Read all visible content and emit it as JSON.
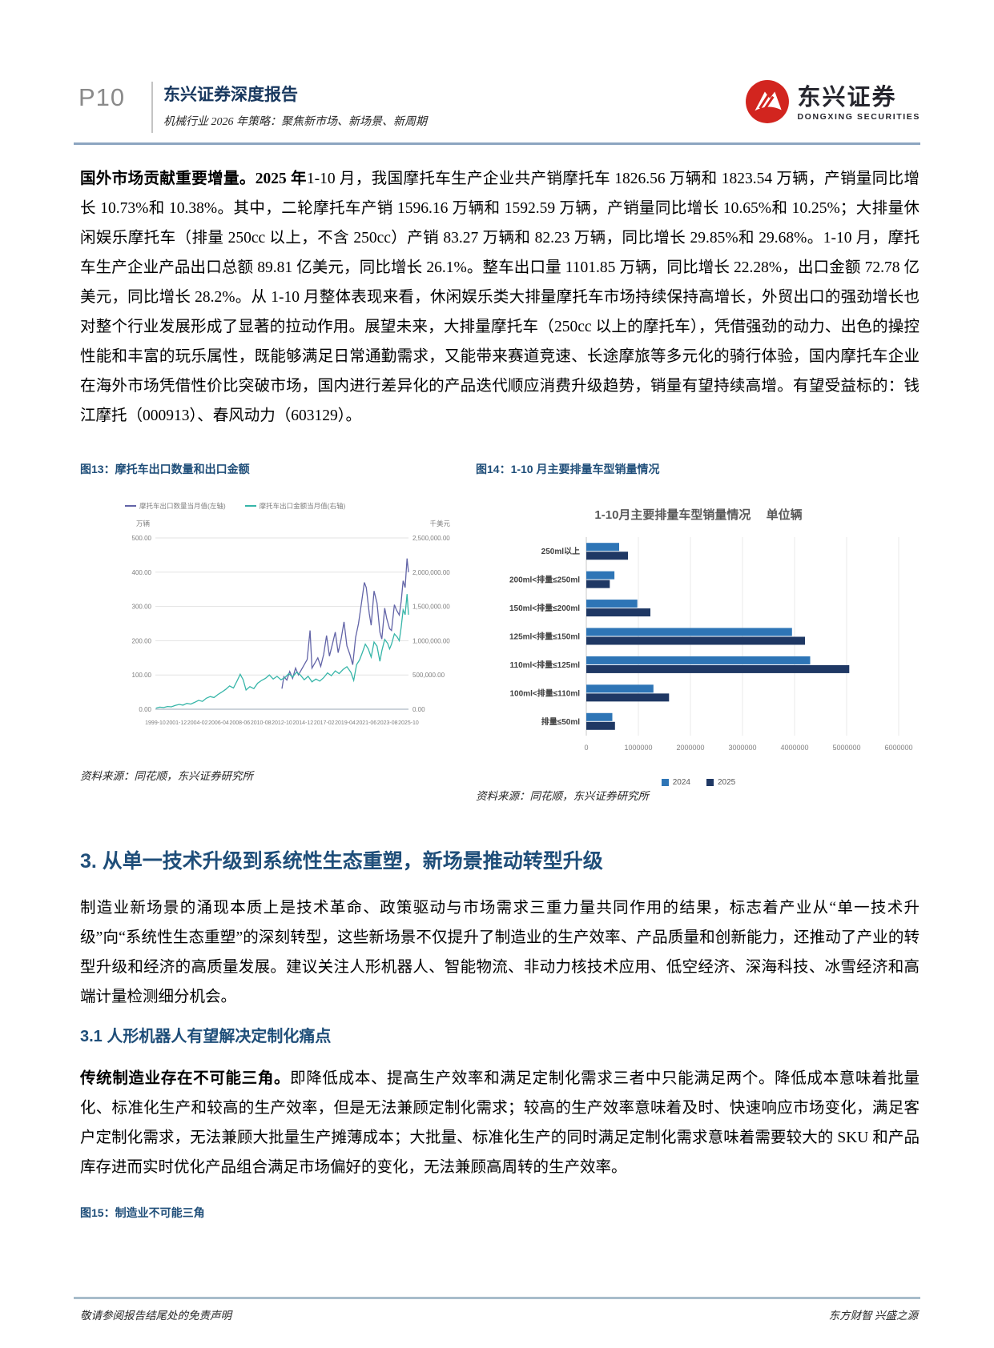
{
  "header": {
    "page_number": "P10",
    "report_type": "东兴证券深度报告",
    "report_subtitle": "机械行业 2026 年策略：聚焦新市场、新场景、新周期",
    "brand_cn": "东兴证券",
    "brand_en": "DONGXING SECURITIES"
  },
  "paragraph1": {
    "lead_bold": "国外市场贡献重要增量。",
    "lead_bold2": "2025 年",
    "text": "1-10 月，我国摩托车生产企业共产销摩托车 1826.56 万辆和 1823.54 万辆，产销量同比增长 10.73%和 10.38%。其中，二轮摩托车产销 1596.16 万辆和 1592.59 万辆，产销量同比增长 10.65%和 10.25%；大排量休闲娱乐摩托车（排量 250cc 以上，不含 250cc）产销 83.27 万辆和 82.23 万辆，同比增长 29.85%和 29.68%。1-10 月，摩托车生产企业产品出口总额 89.81 亿美元，同比增长 26.1%。整车出口量 1101.85 万辆，同比增长 22.28%，出口金额 72.78 亿美元，同比增长 28.2%。从 1-10 月整体表现来看，休闲娱乐类大排量摩托车市场持续保持高增长，外贸出口的强劲增长也对整个行业发展形成了显著的拉动作用。展望未来，大排量摩托车（250cc 以上的摩托车），凭借强劲的动力、出色的操控性能和丰富的玩乐属性，既能够满足日常通勤需求，又能带来赛道竞速、长途摩旅等多元化的骑行体验，国内摩托车企业在海外市场凭借性价比突破市场，国内进行差异化的产品迭代顺应消费升级趋势，销量有望持续高增。有望受益标的：钱江摩托（000913）、春风动力（603129）。"
  },
  "figures": {
    "fig13_caption": "图13：摩托车出口数量和出口金额",
    "fig14_caption": "图14：1-10 月主要排量车型销量情况",
    "source_left": "资料来源：同花顺，东兴证券研究所",
    "source_right": "资料来源：同花顺，东兴证券研究所",
    "fig15_caption": "图15：制造业不可能三角"
  },
  "section3": {
    "heading": "3. 从单一技术升级到系统性生态重塑，新场景推动转型升级",
    "paragraph": "制造业新场景的涌现本质上是技术革命、政策驱动与市场需求三重力量共同作用的结果，标志着产业从“单一技术升级”向“系统性生态重塑”的深刻转型，这些新场景不仅提升了制造业的生产效率、产品质量和创新能力，还推动了产业的转型升级和经济的高质量发展。建议关注人形机器人、智能物流、非动力核技术应用、低空经济、深海科技、冰雪经济和高端计量检测细分机会。",
    "sub_heading": "3.1 人形机器人有望解决定制化痛点",
    "para2_bold": "传统制造业存在不可能三角。",
    "para2_text": "即降低成本、提高生产效率和满足定制化需求三者中只能满足两个。降低成本意味着批量化、标准化生产和较高的生产效率，但是无法兼顾定制化需求；较高的生产效率意味着及时、快速响应市场变化，满足客户定制化需求，无法兼顾大批量生产摊薄成本；大批量、标准化生产的同时满足定制化需求意味着需要较大的 SKU 和产品库存进而实时优化产品组合满足市场偏好的变化，无法兼顾高周转的生产效率。"
  },
  "footer": {
    "left": "敬请参阅报告结尾处的免责声明",
    "right": "东方财智 兴盛之源"
  },
  "chart_data": [
    {
      "type": "line",
      "title": "摩托车出口数量和出口金额",
      "legend_position": "top-left",
      "grid": true,
      "left_axis": {
        "unit": "万辆",
        "range": [
          0,
          500
        ],
        "ticks": [
          "0.00",
          "100.00",
          "200.00",
          "300.00",
          "400.00",
          "500.00"
        ]
      },
      "right_axis": {
        "unit": "千美元",
        "range": [
          0,
          2500000
        ],
        "ticks": [
          "0.00",
          "500,000.00",
          "1,000,000.00",
          "1,500,000.00",
          "2,000,000.00",
          "2,500,000.00"
        ]
      },
      "x_range": [
        1999.75,
        2025.85
      ],
      "x_ticks": [
        "1999-10",
        "2001-12",
        "2004-02",
        "2006-04",
        "2008-06",
        "2010-08",
        "2012-10",
        "2014-12",
        "2017-02",
        "2019-04",
        "2021-06",
        "2023-08",
        "2025-10"
      ],
      "series": [
        {
          "name": "摩托车出口数量当月值(左轴)",
          "axis": "left",
          "color": "#6264A7",
          "points": [
            [
              2012.8,
              60
            ],
            [
              2013.0,
              95
            ],
            [
              2013.3,
              85
            ],
            [
              2013.6,
              110
            ],
            [
              2013.9,
              90
            ],
            [
              2014.2,
              120
            ],
            [
              2014.5,
              100
            ],
            [
              2014.8,
              115
            ],
            [
              2015.1,
              130
            ],
            [
              2015.4,
              145
            ],
            [
              2015.7,
              230
            ],
            [
              2015.9,
              120
            ],
            [
              2016.2,
              135
            ],
            [
              2016.5,
              150
            ],
            [
              2016.8,
              125
            ],
            [
              2017.1,
              160
            ],
            [
              2017.4,
              215
            ],
            [
              2017.7,
              155
            ],
            [
              2018.0,
              190
            ],
            [
              2018.3,
              225
            ],
            [
              2018.6,
              165
            ],
            [
              2018.9,
              205
            ],
            [
              2019.2,
              255
            ],
            [
              2019.5,
              185
            ],
            [
              2019.8,
              160
            ],
            [
              2020.1,
              130
            ],
            [
              2020.4,
              210
            ],
            [
              2020.7,
              250
            ],
            [
              2021.0,
              310
            ],
            [
              2021.3,
              370
            ],
            [
              2021.5,
              355
            ],
            [
              2021.8,
              280
            ],
            [
              2022.0,
              245
            ],
            [
              2022.3,
              345
            ],
            [
              2022.6,
              310
            ],
            [
              2022.9,
              225
            ],
            [
              2023.1,
              205
            ],
            [
              2023.4,
              295
            ],
            [
              2023.6,
              265
            ],
            [
              2023.9,
              235
            ],
            [
              2024.1,
              230
            ],
            [
              2024.4,
              305
            ],
            [
              2024.6,
              290
            ],
            [
              2024.9,
              275
            ],
            [
              2025.1,
              315
            ],
            [
              2025.3,
              375
            ],
            [
              2025.5,
              355
            ],
            [
              2025.7,
              440
            ],
            [
              2025.85,
              400
            ]
          ]
        },
        {
          "name": "摩托车出口金额当月值(右轴)",
          "axis": "right",
          "color": "#36B5A8",
          "points": [
            [
              1999.8,
              15000
            ],
            [
              2000.2,
              30000
            ],
            [
              2000.6,
              25000
            ],
            [
              2001.0,
              40000
            ],
            [
              2001.4,
              35000
            ],
            [
              2001.8,
              55000
            ],
            [
              2002.2,
              70000
            ],
            [
              2002.6,
              60000
            ],
            [
              2003.0,
              85000
            ],
            [
              2003.4,
              75000
            ],
            [
              2003.8,
              100000
            ],
            [
              2004.2,
              130000
            ],
            [
              2004.6,
              115000
            ],
            [
              2005.0,
              160000
            ],
            [
              2005.4,
              185000
            ],
            [
              2005.8,
              170000
            ],
            [
              2006.2,
              215000
            ],
            [
              2006.6,
              250000
            ],
            [
              2007.0,
              290000
            ],
            [
              2007.4,
              340000
            ],
            [
              2007.8,
              310000
            ],
            [
              2008.2,
              420000
            ],
            [
              2008.5,
              510000
            ],
            [
              2008.8,
              430000
            ],
            [
              2009.1,
              280000
            ],
            [
              2009.5,
              330000
            ],
            [
              2009.9,
              300000
            ],
            [
              2010.3,
              380000
            ],
            [
              2010.7,
              420000
            ],
            [
              2011.1,
              450000
            ],
            [
              2011.5,
              500000
            ],
            [
              2011.9,
              440000
            ],
            [
              2012.3,
              480000
            ],
            [
              2012.7,
              430000
            ],
            [
              2013.1,
              460000
            ],
            [
              2013.5,
              520000
            ],
            [
              2013.9,
              470000
            ],
            [
              2014.3,
              540000
            ],
            [
              2014.7,
              500000
            ],
            [
              2015.1,
              430000
            ],
            [
              2015.5,
              480000
            ],
            [
              2015.9,
              400000
            ],
            [
              2016.3,
              440000
            ],
            [
              2016.7,
              410000
            ],
            [
              2017.1,
              460000
            ],
            [
              2017.5,
              530000
            ],
            [
              2017.9,
              490000
            ],
            [
              2018.3,
              560000
            ],
            [
              2018.7,
              520000
            ],
            [
              2019.1,
              580000
            ],
            [
              2019.5,
              620000
            ],
            [
              2019.9,
              540000
            ],
            [
              2020.2,
              420000
            ],
            [
              2020.5,
              650000
            ],
            [
              2020.8,
              720000
            ],
            [
              2021.1,
              830000
            ],
            [
              2021.4,
              950000
            ],
            [
              2021.7,
              880000
            ],
            [
              2022.0,
              760000
            ],
            [
              2022.3,
              980000
            ],
            [
              2022.6,
              920000
            ],
            [
              2022.9,
              700000
            ],
            [
              2023.1,
              850000
            ],
            [
              2023.4,
              1020000
            ],
            [
              2023.7,
              960000
            ],
            [
              2023.9,
              880000
            ],
            [
              2024.1,
              950000
            ],
            [
              2024.4,
              1100000
            ],
            [
              2024.7,
              1050000
            ],
            [
              2024.9,
              1000000
            ],
            [
              2025.1,
              1200000
            ],
            [
              2025.3,
              1450000
            ],
            [
              2025.5,
              1380000
            ],
            [
              2025.7,
              1680000
            ],
            [
              2025.85,
              1380000
            ]
          ]
        }
      ]
    },
    {
      "type": "bar",
      "orientation": "horizontal",
      "title": "1-10月主要排量车型销量情况　 单位辆",
      "categories": [
        "250ml以上",
        "200ml<排量≤250ml",
        "150ml<排量≤200ml",
        "125ml<排量≤150ml",
        "110ml<排量≤125ml",
        "100ml<排量≤110ml",
        "排量≤50ml"
      ],
      "series": [
        {
          "name": "2024",
          "color": "#2E75B6",
          "values": [
            630000,
            540000,
            980000,
            3950000,
            4300000,
            1290000,
            500000
          ]
        },
        {
          "name": "2025",
          "color": "#1F3864",
          "values": [
            800000,
            450000,
            1230000,
            4200000,
            5050000,
            1590000,
            550000
          ]
        }
      ],
      "xlim": [
        0,
        6000000
      ],
      "x_ticks": [
        "0",
        "1000000",
        "2000000",
        "3000000",
        "4000000",
        "5000000",
        "6000000"
      ],
      "legend_position": "bottom"
    }
  ]
}
